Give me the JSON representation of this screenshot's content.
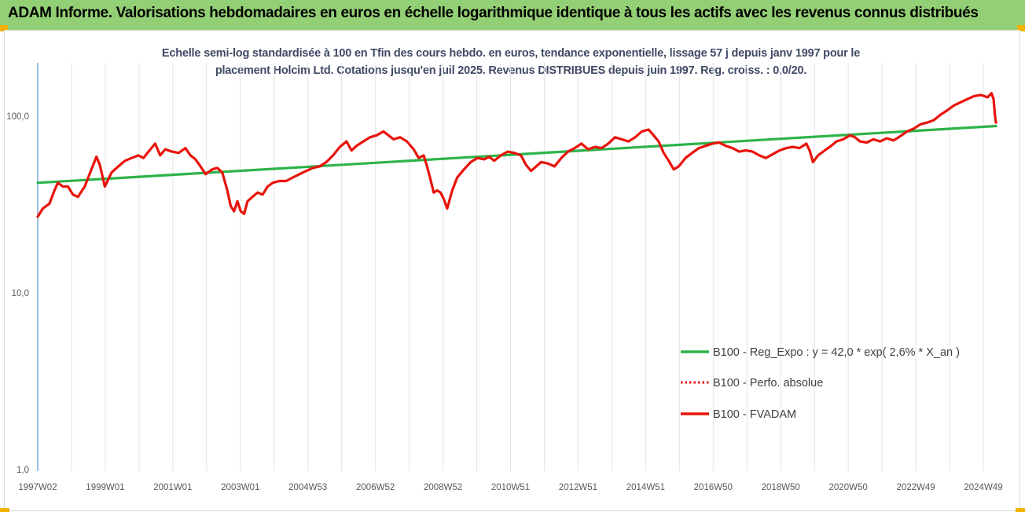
{
  "header": {
    "title": "ADAM Informe. Valorisations hebdomadaires en euros en échelle logarithmique identique à tous les actifs avec les revenus connus distribués"
  },
  "chart_data": {
    "type": "line",
    "title": "Echelle semi-log standardisée à 100 en Tfin des cours hebdo. en euros, tendance exponentielle, lissage 57 j depuis janv 1997 pour le placement Holcim Ltd. Cotations jusqu'en juil 2025. Revenus DISTRIBUES depuis juin 1997. Reg. croiss. : 0,0/20.",
    "title_lines": [
      "Echelle semi-log standardisée à 100 en Tfin des cours hebdo. en euros, tendance exponentielle, lissage 57 j depuis janv 1997 pour le",
      "placement Holcim Ltd. Cotations jusqu'en juil 2025. Revenus DISTRIBUES depuis juin 1997. Reg. croiss. : 0,0/20."
    ],
    "y_scale": "log",
    "ylim": [
      1,
      200
    ],
    "y_ticks": [
      "100,0",
      "10,0",
      "1,0"
    ],
    "x_ticks": [
      "1997W02",
      "1999W01",
      "2001W01",
      "2003W01",
      "2004W53",
      "2006W52",
      "2008W52",
      "2010W51",
      "2012W51",
      "2014W51",
      "2016W50",
      "2018W50",
      "2020W50",
      "2022W49",
      "2024W49"
    ],
    "x_range_years": [
      1997.0,
      2025.55
    ],
    "grid": "vertical",
    "legend_position": "bottom-right",
    "series": [
      {
        "name": "B100 - Reg_Expo : y = 42,0 * exp( 2,6% *  X_an )",
        "color": "#2db34a",
        "style": "solid",
        "points": [
          [
            1997.0,
            42.0
          ],
          [
            2025.55,
            88.0
          ]
        ]
      },
      {
        "name": "B100 - Perfo. absolue",
        "color": "#e8140c",
        "style": "dotted",
        "points": []
      },
      {
        "name": "B100 - FVADAM",
        "color": "#e8140c",
        "style": "solid",
        "points": [
          [
            1997.0,
            27
          ],
          [
            1997.15,
            30
          ],
          [
            1997.35,
            32
          ],
          [
            1997.5,
            38
          ],
          [
            1997.6,
            42
          ],
          [
            1997.75,
            40
          ],
          [
            1997.9,
            40
          ],
          [
            1998.05,
            36
          ],
          [
            1998.2,
            35
          ],
          [
            1998.4,
            40
          ],
          [
            1998.6,
            50
          ],
          [
            1998.75,
            59
          ],
          [
            1998.85,
            53
          ],
          [
            1999.0,
            40
          ],
          [
            1999.2,
            48
          ],
          [
            1999.4,
            52
          ],
          [
            1999.6,
            56
          ],
          [
            1999.8,
            58
          ],
          [
            2000.0,
            60
          ],
          [
            2000.15,
            58
          ],
          [
            2000.3,
            63
          ],
          [
            2000.5,
            70
          ],
          [
            2000.65,
            60
          ],
          [
            2000.8,
            65
          ],
          [
            2001.0,
            63
          ],
          [
            2001.2,
            62
          ],
          [
            2001.4,
            66
          ],
          [
            2001.55,
            60
          ],
          [
            2001.7,
            57
          ],
          [
            2001.85,
            52
          ],
          [
            2002.0,
            47
          ],
          [
            2002.2,
            50
          ],
          [
            2002.35,
            51
          ],
          [
            2002.5,
            48
          ],
          [
            2002.65,
            38
          ],
          [
            2002.75,
            31
          ],
          [
            2002.85,
            29
          ],
          [
            2002.95,
            33
          ],
          [
            2003.05,
            29
          ],
          [
            2003.15,
            28
          ],
          [
            2003.25,
            33
          ],
          [
            2003.4,
            35
          ],
          [
            2003.55,
            37
          ],
          [
            2003.7,
            36
          ],
          [
            2003.85,
            40
          ],
          [
            2004.0,
            42
          ],
          [
            2004.2,
            43
          ],
          [
            2004.4,
            43
          ],
          [
            2004.6,
            45
          ],
          [
            2004.8,
            47
          ],
          [
            2005.0,
            49
          ],
          [
            2005.2,
            51
          ],
          [
            2005.4,
            52
          ],
          [
            2005.6,
            55
          ],
          [
            2005.8,
            60
          ],
          [
            2006.0,
            67
          ],
          [
            2006.2,
            72
          ],
          [
            2006.35,
            64
          ],
          [
            2006.5,
            68
          ],
          [
            2006.7,
            72
          ],
          [
            2006.9,
            76
          ],
          [
            2007.1,
            78
          ],
          [
            2007.3,
            82
          ],
          [
            2007.45,
            78
          ],
          [
            2007.6,
            74
          ],
          [
            2007.8,
            76
          ],
          [
            2008.0,
            72
          ],
          [
            2008.2,
            65
          ],
          [
            2008.35,
            58
          ],
          [
            2008.5,
            60
          ],
          [
            2008.6,
            52
          ],
          [
            2008.7,
            44
          ],
          [
            2008.8,
            37
          ],
          [
            2008.9,
            38
          ],
          [
            2009.0,
            37
          ],
          [
            2009.1,
            34
          ],
          [
            2009.2,
            30
          ],
          [
            2009.35,
            38
          ],
          [
            2009.5,
            45
          ],
          [
            2009.7,
            50
          ],
          [
            2009.9,
            55
          ],
          [
            2010.1,
            58
          ],
          [
            2010.3,
            57
          ],
          [
            2010.45,
            59
          ],
          [
            2010.6,
            56
          ],
          [
            2010.8,
            60
          ],
          [
            2011.0,
            63
          ],
          [
            2011.2,
            62
          ],
          [
            2011.4,
            60
          ],
          [
            2011.55,
            53
          ],
          [
            2011.7,
            49
          ],
          [
            2011.85,
            52
          ],
          [
            2012.0,
            55
          ],
          [
            2012.2,
            54
          ],
          [
            2012.4,
            52
          ],
          [
            2012.6,
            58
          ],
          [
            2012.8,
            63
          ],
          [
            2013.0,
            66
          ],
          [
            2013.2,
            70
          ],
          [
            2013.4,
            65
          ],
          [
            2013.6,
            67
          ],
          [
            2013.8,
            66
          ],
          [
            2014.0,
            70
          ],
          [
            2014.2,
            76
          ],
          [
            2014.4,
            74
          ],
          [
            2014.6,
            72
          ],
          [
            2014.8,
            76
          ],
          [
            2015.0,
            82
          ],
          [
            2015.2,
            84
          ],
          [
            2015.35,
            78
          ],
          [
            2015.5,
            72
          ],
          [
            2015.65,
            62
          ],
          [
            2015.8,
            56
          ],
          [
            2015.95,
            50
          ],
          [
            2016.1,
            52
          ],
          [
            2016.3,
            58
          ],
          [
            2016.5,
            62
          ],
          [
            2016.7,
            66
          ],
          [
            2016.9,
            68
          ],
          [
            2017.1,
            70
          ],
          [
            2017.3,
            71
          ],
          [
            2017.5,
            68
          ],
          [
            2017.7,
            66
          ],
          [
            2017.9,
            63
          ],
          [
            2018.1,
            64
          ],
          [
            2018.3,
            63
          ],
          [
            2018.5,
            60
          ],
          [
            2018.7,
            58
          ],
          [
            2018.9,
            61
          ],
          [
            2019.1,
            64
          ],
          [
            2019.3,
            66
          ],
          [
            2019.5,
            67
          ],
          [
            2019.7,
            66
          ],
          [
            2019.9,
            70
          ],
          [
            2020.0,
            64
          ],
          [
            2020.1,
            55
          ],
          [
            2020.25,
            60
          ],
          [
            2020.45,
            64
          ],
          [
            2020.6,
            67
          ],
          [
            2020.8,
            72
          ],
          [
            2021.0,
            74
          ],
          [
            2021.2,
            78
          ],
          [
            2021.35,
            76
          ],
          [
            2021.5,
            72
          ],
          [
            2021.7,
            71
          ],
          [
            2021.9,
            74
          ],
          [
            2022.1,
            72
          ],
          [
            2022.3,
            75
          ],
          [
            2022.5,
            73
          ],
          [
            2022.7,
            77
          ],
          [
            2022.9,
            82
          ],
          [
            2023.1,
            85
          ],
          [
            2023.3,
            90
          ],
          [
            2023.5,
            92
          ],
          [
            2023.7,
            95
          ],
          [
            2023.9,
            102
          ],
          [
            2024.1,
            108
          ],
          [
            2024.3,
            115
          ],
          [
            2024.5,
            120
          ],
          [
            2024.7,
            125
          ],
          [
            2024.9,
            130
          ],
          [
            2025.1,
            132
          ],
          [
            2025.3,
            128
          ],
          [
            2025.42,
            135
          ],
          [
            2025.48,
            125
          ],
          [
            2025.52,
            102
          ],
          [
            2025.55,
            92
          ]
        ]
      }
    ]
  }
}
